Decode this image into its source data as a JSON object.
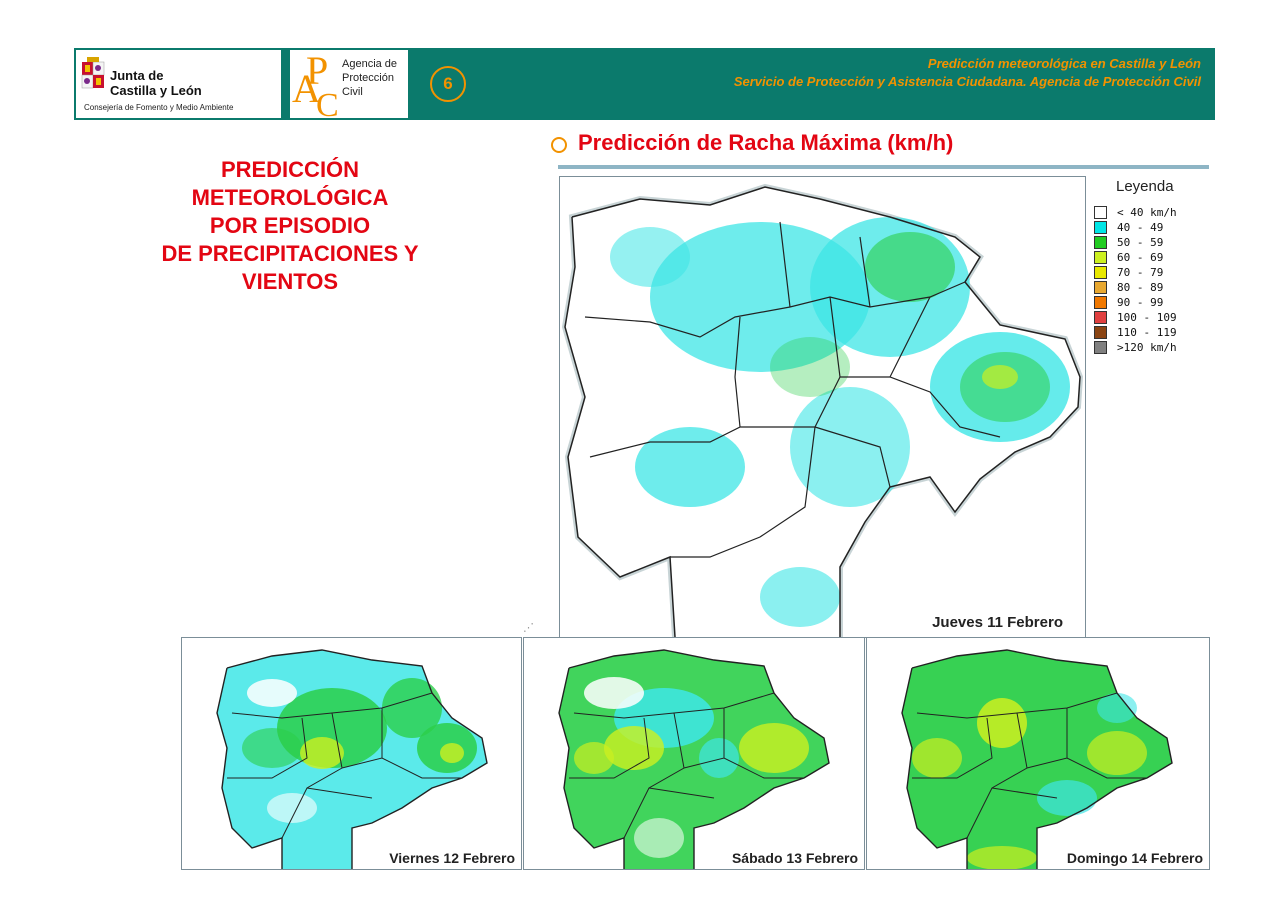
{
  "header": {
    "logo_jcyl": {
      "line1": "Junta de",
      "line2": "Castilla y León",
      "line3": "Consejería de Fomento y Medio Ambiente"
    },
    "logo_apc": {
      "letters": "APC",
      "line1": "Agencia de",
      "line2": "Protección",
      "line3": "Civil"
    },
    "page_number": "6",
    "line1": "Predicción meteorológica en Castilla y León",
    "line2": "Servicio de Protección y Asistencia Ciudadana. Agencia de Protección Civil"
  },
  "left_title": {
    "line1": "PREDICCIÓN",
    "line2": "METEOROLÓGICA",
    "line3": "POR EPISODIO",
    "line4": "DE PRECIPITACIONES Y",
    "line5": "VIENTOS"
  },
  "section_title": "Predicción de Racha Máxima (km/h)",
  "legend": {
    "title": "Leyenda",
    "items": [
      {
        "label": "< 40 km/h",
        "color": "#ffffff"
      },
      {
        "label": "40 - 49",
        "color": "#00e6e6"
      },
      {
        "label": "50 - 59",
        "color": "#22cc22"
      },
      {
        "label": "60 - 69",
        "color": "#ccf020"
      },
      {
        "label": "70 - 79",
        "color": "#e8e800"
      },
      {
        "label": "80 - 89",
        "color": "#e8a830"
      },
      {
        "label": "90 - 99",
        "color": "#f07800"
      },
      {
        "label": "100 - 109",
        "color": "#e04040"
      },
      {
        "label": "110 - 119",
        "color": "#8b4513"
      },
      {
        "label": ">120 km/h",
        "color": "#808080"
      }
    ]
  },
  "maps": {
    "main": {
      "label": "Jueves 11 Febrero"
    },
    "day2": {
      "label": "Viernes 12 Febrero"
    },
    "day3": {
      "label": "Sábado 13 Febrero"
    },
    "day4": {
      "label": "Domingo 14 Febrero"
    }
  },
  "colors": {
    "header_band": "#0b7a6c",
    "accent_orange": "#f29200",
    "title_red": "#e30613"
  }
}
